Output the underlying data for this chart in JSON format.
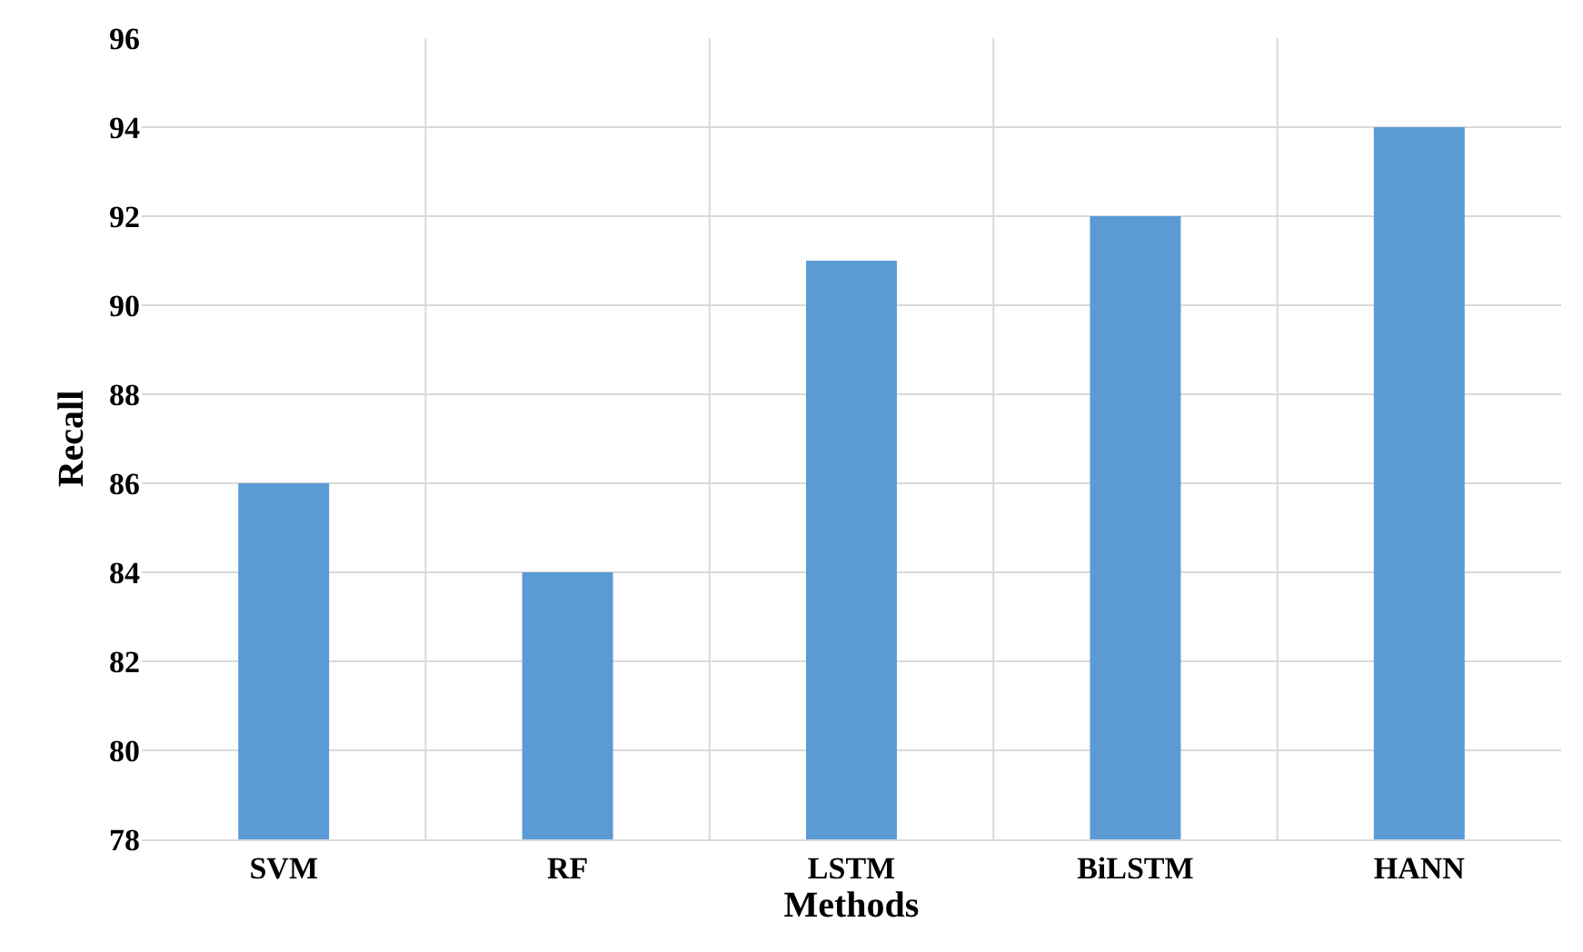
{
  "chart_data": {
    "type": "bar",
    "xlabel": "Methods",
    "ylabel": "Recall",
    "categories": [
      "SVM",
      "RF",
      "LSTM",
      "BiLSTM",
      "HANN"
    ],
    "values": [
      86,
      84,
      91,
      92,
      94
    ],
    "color": "#5b9bd5",
    "ylim": [
      78,
      96
    ],
    "yticks": [
      78,
      80,
      82,
      84,
      86,
      88,
      90,
      92,
      94,
      96
    ],
    "grid": true
  }
}
